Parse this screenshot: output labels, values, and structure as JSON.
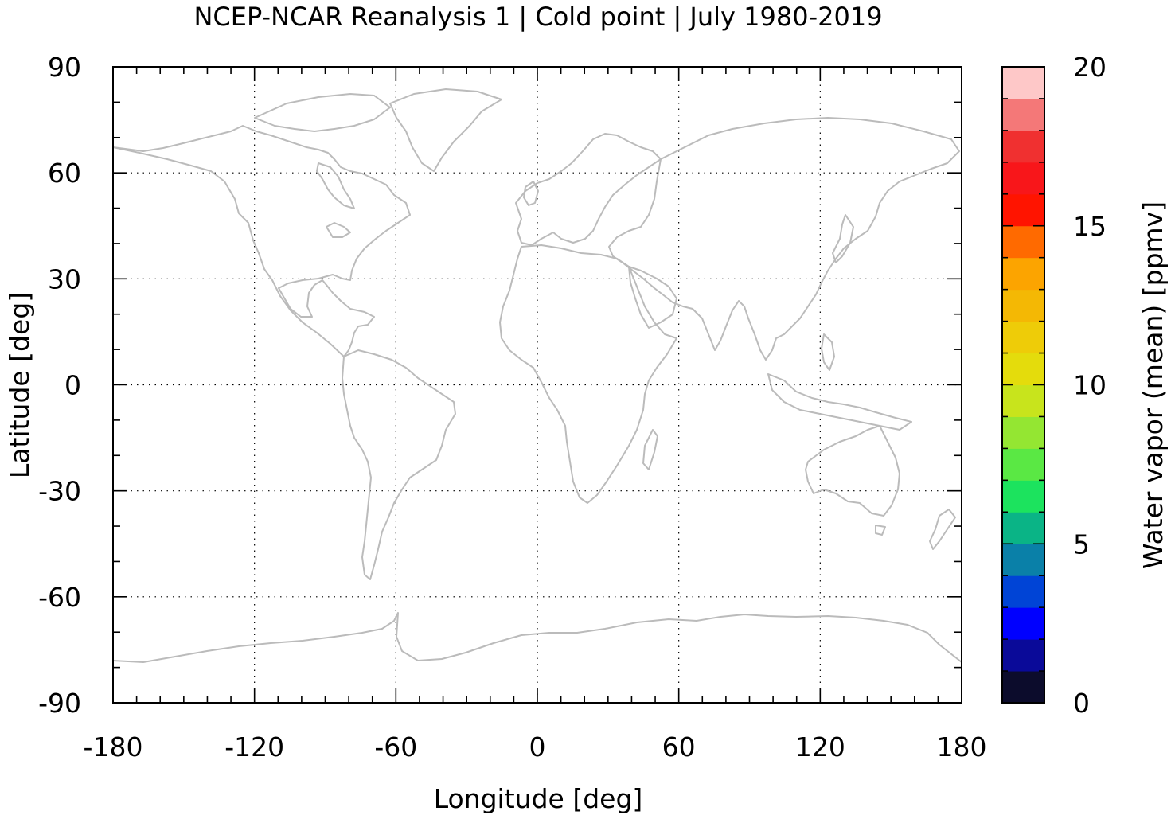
{
  "chart_data": {
    "type": "map",
    "title": "NCEP-NCAR Reanalysis 1 | Cold point | July 1980-2019",
    "xlabel": "Longitude [deg]",
    "ylabel": "Latitude [deg]",
    "xlim": [
      -180,
      180
    ],
    "ylim": [
      -90,
      90
    ],
    "xticks": [
      -180,
      -120,
      -60,
      0,
      60,
      120,
      180
    ],
    "yticks": [
      -90,
      -60,
      -30,
      0,
      30,
      60,
      90
    ],
    "xtick_labels": [
      "-180",
      "-120",
      "-60",
      "0",
      "60",
      "120",
      "180"
    ],
    "ytick_labels": [
      "-90",
      "-60",
      "-30",
      "0",
      "30",
      "60",
      "90"
    ],
    "grid": true,
    "coastlines": true,
    "colorbar": {
      "label": "Water vapor (mean) [ppmv]",
      "range": [
        0,
        20
      ],
      "ticks": [
        0,
        5,
        10,
        15,
        20
      ],
      "tick_labels": [
        "0",
        "5",
        "10",
        "15",
        "20"
      ],
      "levels": [
        {
          "from": 0,
          "to": 1,
          "color": "#0c0c2c"
        },
        {
          "from": 1,
          "to": 2,
          "color": "#0a0a99"
        },
        {
          "from": 2,
          "to": 3,
          "color": "#0000ff"
        },
        {
          "from": 3,
          "to": 4,
          "color": "#0044d6"
        },
        {
          "from": 4,
          "to": 5,
          "color": "#0a80a8"
        },
        {
          "from": 5,
          "to": 6,
          "color": "#0ab486"
        },
        {
          "from": 6,
          "to": 7,
          "color": "#1ce35e"
        },
        {
          "from": 7,
          "to": 8,
          "color": "#5ae844"
        },
        {
          "from": 8,
          "to": 9,
          "color": "#94e632"
        },
        {
          "from": 9,
          "to": 10,
          "color": "#c8e41c"
        },
        {
          "from": 10,
          "to": 11,
          "color": "#e4dc0c"
        },
        {
          "from": 11,
          "to": 12,
          "color": "#eecc08"
        },
        {
          "from": 12,
          "to": 13,
          "color": "#f4b804"
        },
        {
          "from": 13,
          "to": 14,
          "color": "#fca400"
        },
        {
          "from": 14,
          "to": 15,
          "color": "#ff6a00"
        },
        {
          "from": 15,
          "to": 16,
          "color": "#ff1400"
        },
        {
          "from": 16,
          "to": 17,
          "color": "#f8161a"
        },
        {
          "from": 17,
          "to": 18,
          "color": "#f03030"
        },
        {
          "from": 18,
          "to": 19,
          "color": "#f47878"
        },
        {
          "from": 19,
          "to": 20,
          "color": "#fec8c8"
        }
      ]
    },
    "coastline_color": "#bbbbbb"
  }
}
